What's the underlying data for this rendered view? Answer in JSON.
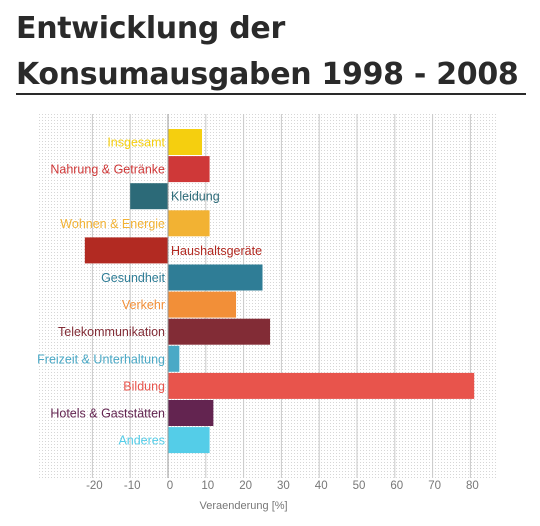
{
  "title": {
    "line1": "Entwicklung der",
    "line2": "Konsumausgaben 1998 - 2008"
  },
  "chart_data": {
    "type": "bar",
    "orientation": "horizontal",
    "xlabel": "Veraenderung [%]",
    "xlim": [
      -30,
      90
    ],
    "xticks": [
      -20,
      -10,
      0,
      10,
      20,
      30,
      40,
      50,
      60,
      70,
      80
    ],
    "grid": true,
    "categories": [
      "Insgesamt",
      "Nahrung & Getränke",
      "Kleidung",
      "Wohnen & Energie",
      "Haushaltsgeräte",
      "Gesundheit",
      "Verkehr",
      "Telekommunikation",
      "Freizeit & Unterhaltung",
      "Bildung",
      "Hotels & Gaststätten",
      "Anderes"
    ],
    "values": [
      9,
      11,
      -10,
      11,
      -22,
      25,
      18,
      27,
      3,
      81,
      12,
      11
    ],
    "colors": [
      "#f5cf0f",
      "#cf3838",
      "#2c6a78",
      "#f2b233",
      "#b22a22",
      "#2f7d96",
      "#f28f38",
      "#822c36",
      "#4aa9c6",
      "#e8544c",
      "#632450",
      "#54cde8"
    ]
  }
}
